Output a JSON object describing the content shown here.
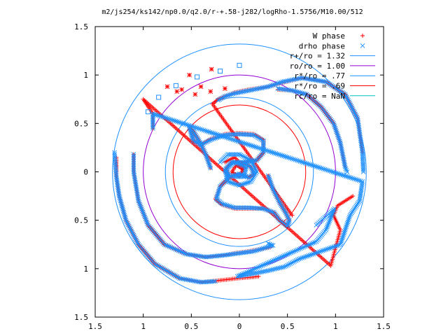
{
  "chart_data": {
    "type": "scatter",
    "title": "m2/js254/ks142/np0.0/q2.0/r-+.58-j282/logRho-1.5756/M10.00/512",
    "xlabel": "",
    "ylabel": "",
    "xlim": [
      -1.5,
      1.5
    ],
    "ylim": [
      -1.5,
      1.5
    ],
    "x_tick_values": [
      -1.5,
      -1,
      -0.5,
      0,
      0.5,
      1,
      1.5
    ],
    "x_tick_labels": [
      "1.5",
      "1",
      "0.5",
      "0",
      "0.5",
      "1",
      "1.5"
    ],
    "y_tick_values": [
      1.5,
      1,
      0.5,
      0,
      -0.5,
      -1,
      -1.5
    ],
    "y_tick_labels": [
      "1.5",
      "1",
      "0.5",
      "0",
      "0.5",
      "1",
      "1.5"
    ],
    "grid": false,
    "legend_position": "top-right",
    "legend": [
      {
        "label": "W phase",
        "kind": "marker",
        "marker": "plus",
        "color": "#ff0000"
      },
      {
        "label": "drho phase",
        "kind": "marker",
        "marker": "cross",
        "color": "#1e90ff"
      },
      {
        "label": "r+/ro = 1.32",
        "kind": "line",
        "color": "#1e90ff"
      },
      {
        "label": "ro/ro = 1.00",
        "kind": "line",
        "color": "#9400d3"
      },
      {
        "label": "r*/ro = .77",
        "kind": "line",
        "color": "#1e90ff"
      },
      {
        "label": "r*/ro = .69",
        "kind": "line",
        "color": "#ff0000"
      },
      {
        "label": "rc/ro = NaN",
        "kind": "line",
        "color": "#00c0c0"
      }
    ],
    "circles": [
      {
        "name": "r+/ro = 1.32",
        "radius": 1.32,
        "color": "#1e90ff"
      },
      {
        "name": "ro/ro = 1.00",
        "radius": 1.0,
        "color": "#9400d3"
      },
      {
        "name": "r*/ro = .77",
        "radius": 0.77,
        "color": "#1e90ff"
      },
      {
        "name": "r*/ro = .69",
        "radius": 0.69,
        "color": "#ff0000"
      }
    ],
    "series": [
      {
        "name": "W phase",
        "marker": "plus",
        "color": "#ff0000",
        "arms": [
          [
            [
              0.3,
              -0.04
            ],
            [
              0.35,
              -0.18
            ],
            [
              0.42,
              -0.32
            ],
            [
              0.48,
              -0.42
            ],
            [
              0.52,
              -0.5
            ],
            [
              0.5,
              -0.56
            ],
            [
              0.42,
              -0.5
            ],
            [
              0.36,
              -0.42
            ],
            [
              0.25,
              -0.38
            ],
            [
              0.1,
              -0.38
            ],
            [
              -0.05,
              -0.38
            ],
            [
              -0.18,
              -0.34
            ],
            [
              -0.25,
              -0.28
            ],
            [
              -0.2,
              -0.15
            ],
            [
              -0.1,
              -0.05
            ],
            [
              0.0,
              -0.02
            ],
            [
              0.1,
              -0.06
            ],
            [
              0.15,
              -0.02
            ],
            [
              0.12,
              0.05
            ],
            [
              0.05,
              0.09
            ]
          ],
          [
            [
              -0.3,
              0.04
            ],
            [
              -0.35,
              0.18
            ],
            [
              -0.42,
              0.32
            ],
            [
              -0.48,
              0.42
            ],
            [
              -0.52,
              0.46
            ],
            [
              -0.48,
              0.32
            ],
            [
              -0.4,
              0.28
            ],
            [
              -0.3,
              0.34
            ],
            [
              -0.15,
              0.39
            ],
            [
              0.0,
              0.4
            ],
            [
              0.15,
              0.39
            ],
            [
              0.25,
              0.33
            ],
            [
              0.25,
              0.2
            ],
            [
              0.18,
              0.12
            ],
            [
              0.05,
              0.1
            ],
            [
              -0.08,
              0.1
            ],
            [
              -0.14,
              0.03
            ],
            [
              -0.1,
              -0.05
            ]
          ],
          [
            [
              1.28,
              0.2
            ],
            [
              1.23,
              0.55
            ],
            [
              1.1,
              0.8
            ],
            [
              0.9,
              0.93
            ],
            [
              0.65,
              0.97
            ],
            [
              0.45,
              0.92
            ],
            [
              0.3,
              0.88
            ],
            [
              0.1,
              0.85
            ],
            [
              -0.05,
              0.82
            ],
            [
              -0.15,
              0.78
            ],
            [
              -0.22,
              0.75
            ],
            [
              -0.28,
              0.7
            ],
            [
              0.55,
              -0.45
            ]
          ],
          [
            [
              1.1,
              0.05
            ],
            [
              1.05,
              0.3
            ],
            [
              0.98,
              0.5
            ],
            [
              0.85,
              0.67
            ],
            [
              0.7,
              0.8
            ],
            [
              0.55,
              0.84
            ],
            [
              0.4,
              0.85
            ]
          ],
          [
            [
              -1.28,
              0.15
            ],
            [
              -1.28,
              -0.05
            ],
            [
              -1.25,
              -0.25
            ],
            [
              -1.18,
              -0.5
            ],
            [
              -1.05,
              -0.75
            ],
            [
              -0.88,
              -0.95
            ],
            [
              -0.62,
              -1.1
            ],
            [
              -0.4,
              -1.14
            ],
            [
              -0.2,
              -1.12
            ],
            [
              -0.02,
              -1.1
            ],
            [
              0.1,
              -1.09
            ],
            [
              0.2,
              -1.08
            ]
          ],
          [
            [
              -1.1,
              0.18
            ],
            [
              -1.1,
              0.0
            ],
            [
              -1.05,
              -0.3
            ],
            [
              -0.95,
              -0.55
            ],
            [
              -0.78,
              -0.75
            ],
            [
              -0.55,
              -0.85
            ],
            [
              -0.35,
              -0.88
            ],
            [
              -0.15,
              -0.86
            ],
            [
              -0.05,
              -0.84
            ],
            [
              0.1,
              -0.82
            ],
            [
              0.2,
              -0.8
            ],
            [
              0.32,
              -0.78
            ]
          ],
          [
            [
              -0.9,
              0.45
            ],
            [
              -0.9,
              0.6
            ],
            [
              -1.0,
              0.75
            ],
            [
              0.95,
              -0.97
            ],
            [
              1.05,
              -0.6
            ],
            [
              0.98,
              -0.45
            ],
            [
              1.02,
              -0.35
            ],
            [
              1.18,
              -0.25
            ]
          ],
          [
            [
              -0.15,
              0.1
            ],
            [
              -0.05,
              0.15
            ],
            [
              0.05,
              0.05
            ],
            [
              0.0,
              -0.05
            ],
            [
              -0.08,
              0.0
            ],
            [
              -0.03,
              0.07
            ],
            [
              0.03,
              0.03
            ]
          ]
        ]
      },
      {
        "name": "drho phase",
        "marker": "cross",
        "color": "#1e90ff",
        "arms": [
          [
            [
              0.3,
              -0.04
            ],
            [
              0.35,
              -0.18
            ],
            [
              0.42,
              -0.32
            ],
            [
              0.48,
              -0.42
            ],
            [
              0.52,
              -0.5
            ],
            [
              0.5,
              -0.56
            ],
            [
              0.42,
              -0.5
            ],
            [
              0.36,
              -0.42
            ],
            [
              0.25,
              -0.38
            ],
            [
              0.1,
              -0.37
            ],
            [
              -0.05,
              -0.37
            ],
            [
              -0.18,
              -0.33
            ],
            [
              -0.24,
              -0.28
            ],
            [
              -0.2,
              -0.15
            ],
            [
              -0.1,
              -0.05
            ],
            [
              0.0,
              -0.02
            ],
            [
              0.1,
              -0.06
            ],
            [
              0.15,
              -0.02
            ],
            [
              0.12,
              0.05
            ],
            [
              0.05,
              0.09
            ]
          ],
          [
            [
              -0.3,
              0.04
            ],
            [
              -0.35,
              0.18
            ],
            [
              -0.42,
              0.32
            ],
            [
              -0.48,
              0.42
            ],
            [
              -0.52,
              0.46
            ],
            [
              -0.48,
              0.32
            ],
            [
              -0.4,
              0.28
            ],
            [
              -0.3,
              0.33
            ],
            [
              -0.15,
              0.38
            ],
            [
              0.0,
              0.39
            ],
            [
              0.15,
              0.38
            ],
            [
              0.25,
              0.32
            ],
            [
              0.25,
              0.2
            ],
            [
              0.18,
              0.12
            ],
            [
              0.05,
              0.1
            ],
            [
              -0.08,
              0.1
            ],
            [
              -0.14,
              0.03
            ],
            [
              -0.1,
              -0.05
            ]
          ],
          [
            [
              1.29,
              0.0
            ],
            [
              1.28,
              0.2
            ],
            [
              1.23,
              0.55
            ],
            [
              1.1,
              0.8
            ],
            [
              0.9,
              0.93
            ],
            [
              0.65,
              0.97
            ],
            [
              0.45,
              0.93
            ],
            [
              0.3,
              0.88
            ],
            [
              0.1,
              0.84
            ],
            [
              -0.05,
              0.81
            ],
            [
              -0.15,
              0.78
            ],
            [
              -0.22,
              0.74
            ]
          ],
          [
            [
              1.12,
              0.0
            ],
            [
              1.1,
              0.05
            ],
            [
              1.05,
              0.3
            ],
            [
              0.98,
              0.5
            ],
            [
              0.85,
              0.67
            ],
            [
              0.7,
              0.8
            ],
            [
              0.55,
              0.84
            ],
            [
              0.4,
              0.86
            ]
          ],
          [
            [
              -1.3,
              0.2
            ],
            [
              -1.28,
              -0.05
            ],
            [
              -1.25,
              -0.25
            ],
            [
              -1.18,
              -0.5
            ],
            [
              -1.05,
              -0.75
            ],
            [
              -0.88,
              -0.95
            ],
            [
              -0.62,
              -1.1
            ],
            [
              -0.4,
              -1.14
            ],
            [
              -0.25,
              -1.13
            ]
          ],
          [
            [
              -1.1,
              0.18
            ],
            [
              -1.1,
              0.0
            ],
            [
              -1.05,
              -0.3
            ],
            [
              -0.95,
              -0.55
            ],
            [
              -0.78,
              -0.75
            ],
            [
              -0.55,
              -0.85
            ],
            [
              -0.35,
              -0.88
            ],
            [
              -0.15,
              -0.86
            ],
            [
              0.0,
              -0.84
            ],
            [
              0.15,
              -0.82
            ],
            [
              0.25,
              -0.79
            ],
            [
              0.35,
              -0.76
            ],
            [
              0.3,
              -0.74
            ]
          ],
          [
            [
              -0.9,
              0.45
            ],
            [
              -0.9,
              0.6
            ],
            [
              1.28,
              -0.1
            ],
            [
              1.25,
              -0.3
            ],
            [
              1.15,
              -0.45
            ],
            [
              1.1,
              -0.6
            ],
            [
              1.05,
              -0.75
            ],
            [
              0.62,
              -0.9
            ],
            [
              0.47,
              -0.98
            ],
            [
              0.3,
              -1.02
            ],
            [
              0.15,
              -1.05
            ],
            [
              -0.02,
              -1.08
            ],
            [
              0.8,
              -0.72
            ],
            [
              0.9,
              -0.6
            ],
            [
              0.99,
              -0.38
            ],
            [
              0.8,
              -0.55
            ]
          ],
          [
            [
              -0.2,
              0.1
            ],
            [
              -0.12,
              0.18
            ],
            [
              0.0,
              0.18
            ],
            [
              0.12,
              0.12
            ],
            [
              0.18,
              0.0
            ],
            [
              0.12,
              -0.1
            ],
            [
              0.0,
              -0.14
            ],
            [
              -0.12,
              -0.1
            ],
            [
              -0.15,
              0.02
            ],
            [
              -0.05,
              0.1
            ],
            [
              0.07,
              0.05
            ],
            [
              0.05,
              -0.05
            ],
            [
              -0.05,
              -0.05
            ]
          ]
        ]
      },
      {
        "name": "",
        "marker": "square",
        "color": "#1e90ff",
        "points": [
          [
            -0.2,
            1.04
          ],
          [
            -0.44,
            0.98
          ],
          [
            -0.66,
            0.89
          ],
          [
            -0.84,
            0.77
          ],
          [
            -0.95,
            0.62
          ],
          [
            0.0,
            1.1
          ]
        ]
      },
      {
        "name": "",
        "marker": "star",
        "color": "#ff0000",
        "points": [
          [
            -0.52,
            1.0
          ],
          [
            -0.29,
            1.06
          ],
          [
            -0.65,
            0.83
          ],
          [
            -0.75,
            0.88
          ],
          [
            -0.46,
            0.8
          ],
          [
            -0.3,
            0.83
          ],
          [
            -0.15,
            0.86
          ],
          [
            -0.4,
            0.88
          ],
          [
            -0.6,
            0.85
          ]
        ]
      }
    ]
  }
}
